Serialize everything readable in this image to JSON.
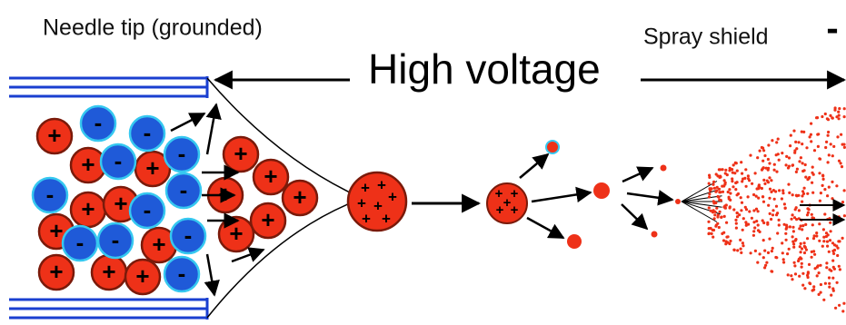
{
  "labels": {
    "needle": "Needle tip (grounded)",
    "voltage": "High voltage",
    "shield": "Spray shield",
    "shield_sign": "-"
  },
  "symbols": {
    "positive": "+",
    "negative": "-"
  }
}
